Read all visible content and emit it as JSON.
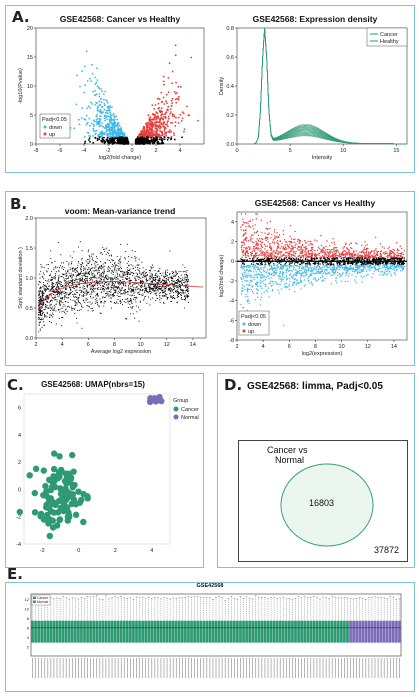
{
  "panels": {
    "A": "A.",
    "B": "B.",
    "C": "C.",
    "D": "D.",
    "E": "E."
  },
  "colors": {
    "down": "#40b8e8",
    "up": "#e83c3c",
    "teal": "#2e9a74",
    "normal": "#7a6cb8",
    "neutral": "#000000",
    "frame": "#7cc4d8"
  },
  "chart_data": [
    {
      "id": "volcano",
      "type": "scatter",
      "title": "GSE42568: Cancer vs Healthy",
      "xlabel": "log2(fold change)",
      "ylabel": "-log10(Pvalue)",
      "xlim": [
        -8,
        6
      ],
      "ylim": [
        0,
        20
      ],
      "xticks": [
        "-8",
        "-6",
        "-4",
        "-2",
        "0",
        "2",
        "4"
      ],
      "yticks": [
        "0",
        "5",
        "10",
        "15",
        "20"
      ],
      "legend": {
        "title": "Padj<0.05",
        "items": [
          "down",
          "up"
        ]
      },
      "series": [
        {
          "name": "down",
          "description_range": {
            "x": [
              -7.5,
              -0.5
            ],
            "y": [
              0,
              17
            ]
          }
        },
        {
          "name": "up",
          "description_range": {
            "x": [
              0.5,
              5.5
            ],
            "y": [
              0,
              18
            ]
          }
        }
      ]
    },
    {
      "id": "density",
      "type": "line",
      "title": "GSE42568: Expression density",
      "xlabel": "Intensity",
      "ylabel": "Density",
      "xlim": [
        0,
        16
      ],
      "ylim": [
        0,
        0.8
      ],
      "xticks": [
        "0",
        "5",
        "10",
        "15"
      ],
      "yticks": [
        "0.0",
        "0.2",
        "0.4",
        "0.6",
        "0.8"
      ],
      "legend": [
        "Cancer",
        "Healthy"
      ],
      "curve_peak": {
        "x": 2.6,
        "y": 0.78
      }
    },
    {
      "id": "voom",
      "type": "scatter",
      "title": "voom: Mean-variance trend",
      "xlabel": "Average log2 expression",
      "ylabel": "Sqrt( standard deviation )",
      "xlim": [
        2,
        15
      ],
      "ylim": [
        0,
        2
      ],
      "xticks": [
        "2",
        "4",
        "6",
        "8",
        "10",
        "12",
        "14"
      ],
      "yticks": [
        "0.0",
        "0.5",
        "1.0",
        "1.5",
        "2.0"
      ]
    },
    {
      "id": "ma",
      "type": "scatter",
      "title": "GSE42568: Cancer vs Healthy",
      "xlabel": "log2(expression)",
      "ylabel": "log2(fold change)",
      "xlim": [
        2,
        15
      ],
      "ylim": [
        -8,
        5
      ],
      "xticks": [
        "2",
        "4",
        "6",
        "8",
        "10",
        "12",
        "14"
      ],
      "yticks": [
        "-8",
        "-6",
        "-4",
        "-2",
        "0",
        "2",
        "4"
      ],
      "legend": {
        "title": "Padj<0.05",
        "items": [
          "down",
          "up"
        ]
      }
    },
    {
      "id": "umap",
      "type": "scatter",
      "title": "GSE42568: UMAP(nbrs=15)",
      "xlim": [
        -3,
        5
      ],
      "ylim": [
        -4,
        7
      ],
      "xticks": [
        "-2",
        "0",
        "2",
        "4"
      ],
      "yticks": [
        "-4",
        "-2",
        "0",
        "2",
        "4",
        "6"
      ],
      "legend": {
        "title": "Group",
        "items": [
          "Cancer",
          "Normal"
        ]
      },
      "clusters": [
        {
          "name": "Cancer",
          "center": [
            -1.0,
            -0.5
          ],
          "spread": [
            1.7,
            3.2
          ]
        },
        {
          "name": "Normal",
          "center": [
            4.2,
            6.6
          ],
          "spread": [
            0.4,
            0.25
          ]
        }
      ]
    },
    {
      "id": "boxplot",
      "type": "bar",
      "title": "GSE42568",
      "yticks": [
        "2",
        "4",
        "6",
        "8",
        "10",
        "12"
      ],
      "legend": [
        "Cancer",
        "Normal"
      ],
      "ylim": [
        0,
        13
      ],
      "cancer_count": 104,
      "normal_count": 17,
      "median": 5.9
    }
  ],
  "venn": {
    "title": "GSE42568: limma, Padj<0.05",
    "set_label": "Cancer vs\nNormal",
    "set_label_line1": "Cancer vs",
    "set_label_line2": "Normal",
    "inside": "16803",
    "outside": "37872"
  }
}
